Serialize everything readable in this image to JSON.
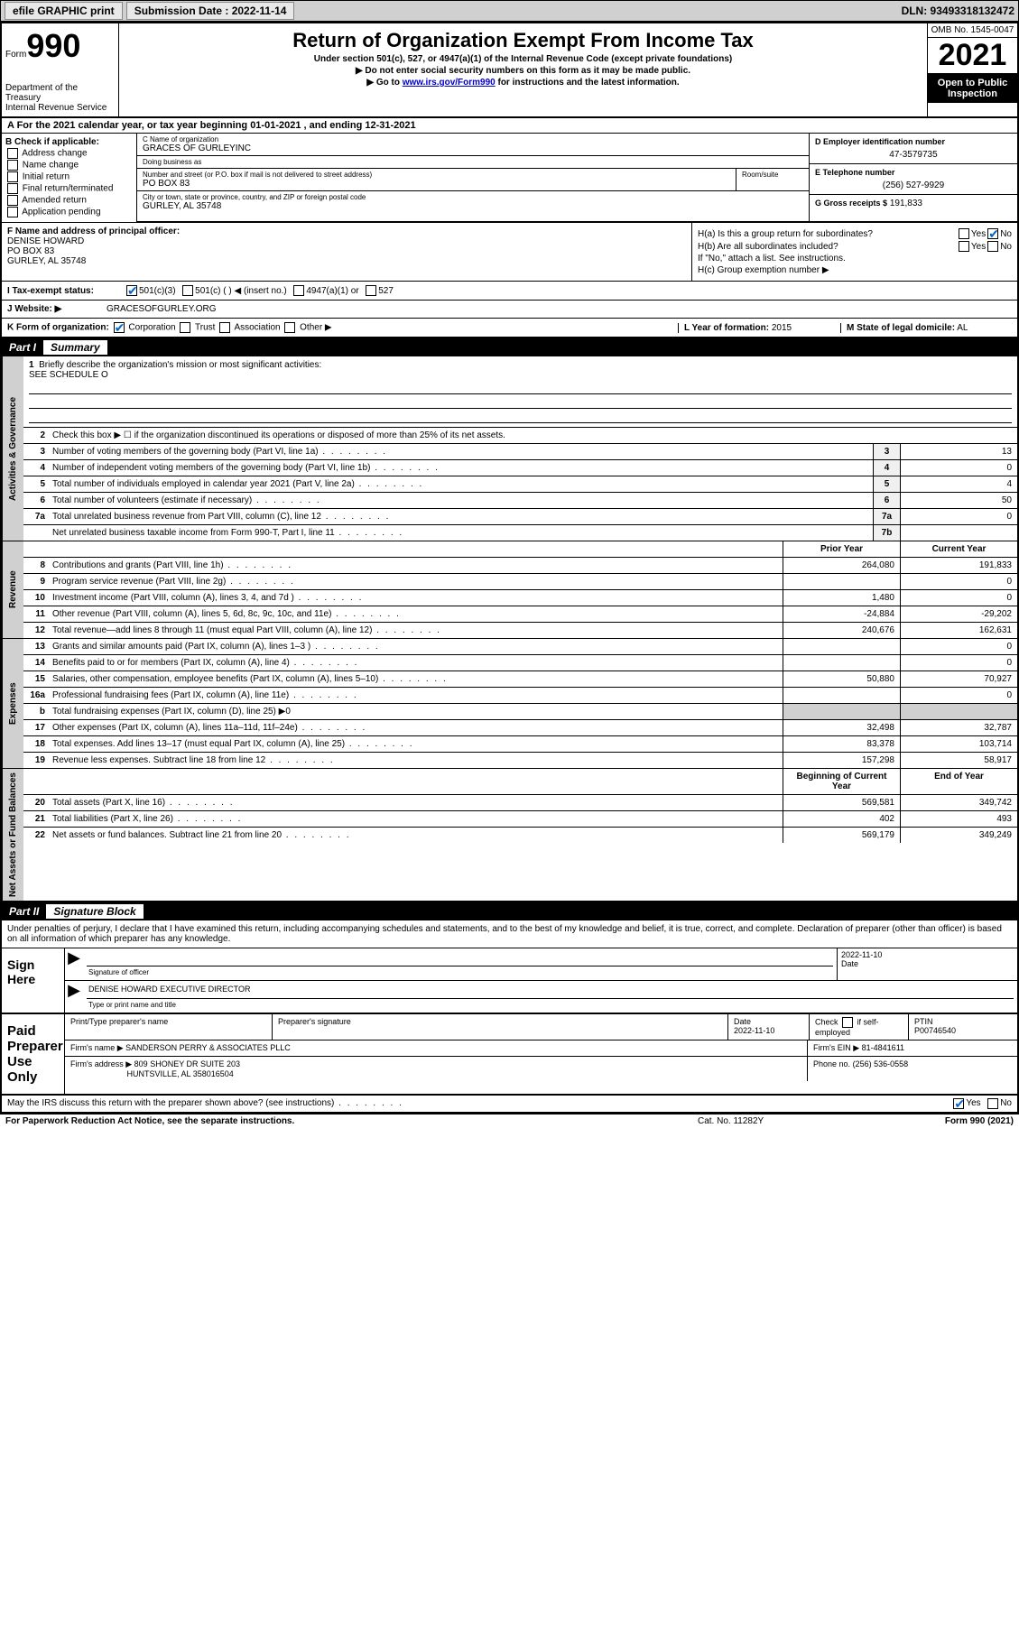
{
  "topbar": {
    "efile": "efile GRAPHIC print",
    "submission_label": "Submission Date : 2022-11-14",
    "dln": "DLN: 93493318132472"
  },
  "header": {
    "form_word": "Form",
    "form_num": "990",
    "dept": "Department of the Treasury",
    "irs": "Internal Revenue Service",
    "title": "Return of Organization Exempt From Income Tax",
    "sub1": "Under section 501(c), 527, or 4947(a)(1) of the Internal Revenue Code (except private foundations)",
    "sub2": "▶ Do not enter social security numbers on this form as it may be made public.",
    "sub3a": "▶ Go to ",
    "sub3_link": "www.irs.gov/Form990",
    "sub3b": " for instructions and the latest information.",
    "omb": "OMB No. 1545-0047",
    "year": "2021",
    "open": "Open to Public Inspection"
  },
  "rowA": {
    "text": "A For the 2021 calendar year, or tax year beginning 01-01-2021   , and ending 12-31-2021"
  },
  "B": {
    "label": "B Check if applicable:",
    "opts": [
      "Address change",
      "Name change",
      "Initial return",
      "Final return/terminated",
      "Amended return",
      "Application pending"
    ]
  },
  "C": {
    "name_lbl": "C Name of organization",
    "name": "GRACES OF GURLEYINC",
    "dba_lbl": "Doing business as",
    "dba": "",
    "street_lbl": "Number and street (or P.O. box if mail is not delivered to street address)",
    "street": "PO BOX 83",
    "suite_lbl": "Room/suite",
    "city_lbl": "City or town, state or province, country, and ZIP or foreign postal code",
    "city": "GURLEY, AL  35748"
  },
  "D": {
    "lbl": "D Employer identification number",
    "val": "47-3579735"
  },
  "E": {
    "lbl": "E Telephone number",
    "val": "(256) 527-9929"
  },
  "G": {
    "lbl": "G Gross receipts $",
    "val": "191,833"
  },
  "F": {
    "lbl": "F Name and address of principal officer:",
    "name": "DENISE HOWARD",
    "addr1": "PO BOX 83",
    "addr2": "GURLEY, AL  35748"
  },
  "H": {
    "a": "H(a)  Is this a group return for subordinates?",
    "b": "H(b)  Are all subordinates included?",
    "note": "If \"No,\" attach a list. See instructions.",
    "c": "H(c)  Group exemption number ▶",
    "yes": "Yes",
    "no": "No"
  },
  "I": {
    "lbl": "I   Tax-exempt status:",
    "o1": "501(c)(3)",
    "o2": "501(c) (  ) ◀ (insert no.)",
    "o3": "4947(a)(1) or",
    "o4": "527"
  },
  "J": {
    "lbl": "J   Website: ▶",
    "val": "GRACESOFGURLEY.ORG"
  },
  "K": {
    "lbl": "K Form of organization:",
    "o1": "Corporation",
    "o2": "Trust",
    "o3": "Association",
    "o4": "Other ▶"
  },
  "L": {
    "lbl": "L Year of formation:",
    "val": "2015"
  },
  "M": {
    "lbl": "M State of legal domicile:",
    "val": "AL"
  },
  "part1": {
    "header_pt": "Part I",
    "header_title": "Summary",
    "side_gov": "Activities & Governance",
    "side_rev": "Revenue",
    "side_exp": "Expenses",
    "side_net": "Net Assets or Fund Balances",
    "l1": "Briefly describe the organization's mission or most significant activities:",
    "l1_val": "SEE SCHEDULE O",
    "l2": "Check this box ▶ ☐  if the organization discontinued its operations or disposed of more than 25% of its net assets.",
    "lines_gov": [
      {
        "n": "3",
        "d": "Number of voting members of the governing body (Part VI, line 1a)",
        "b": "3",
        "v": "13"
      },
      {
        "n": "4",
        "d": "Number of independent voting members of the governing body (Part VI, line 1b)",
        "b": "4",
        "v": "0"
      },
      {
        "n": "5",
        "d": "Total number of individuals employed in calendar year 2021 (Part V, line 2a)",
        "b": "5",
        "v": "4"
      },
      {
        "n": "6",
        "d": "Total number of volunteers (estimate if necessary)",
        "b": "6",
        "v": "50"
      },
      {
        "n": "7a",
        "d": "Total unrelated business revenue from Part VIII, column (C), line 12",
        "b": "7a",
        "v": "0"
      },
      {
        "n": "",
        "d": "Net unrelated business taxable income from Form 990-T, Part I, line 11",
        "b": "7b",
        "v": ""
      }
    ],
    "col_prior": "Prior Year",
    "col_curr": "Current Year",
    "lines_rev": [
      {
        "n": "8",
        "d": "Contributions and grants (Part VIII, line 1h)",
        "p": "264,080",
        "c": "191,833"
      },
      {
        "n": "9",
        "d": "Program service revenue (Part VIII, line 2g)",
        "p": "",
        "c": "0"
      },
      {
        "n": "10",
        "d": "Investment income (Part VIII, column (A), lines 3, 4, and 7d )",
        "p": "1,480",
        "c": "0"
      },
      {
        "n": "11",
        "d": "Other revenue (Part VIII, column (A), lines 5, 6d, 8c, 9c, 10c, and 11e)",
        "p": "-24,884",
        "c": "-29,202"
      },
      {
        "n": "12",
        "d": "Total revenue—add lines 8 through 11 (must equal Part VIII, column (A), line 12)",
        "p": "240,676",
        "c": "162,631"
      }
    ],
    "lines_exp": [
      {
        "n": "13",
        "d": "Grants and similar amounts paid (Part IX, column (A), lines 1–3 )",
        "p": "",
        "c": "0"
      },
      {
        "n": "14",
        "d": "Benefits paid to or for members (Part IX, column (A), line 4)",
        "p": "",
        "c": "0"
      },
      {
        "n": "15",
        "d": "Salaries, other compensation, employee benefits (Part IX, column (A), lines 5–10)",
        "p": "50,880",
        "c": "70,927"
      },
      {
        "n": "16a",
        "d": "Professional fundraising fees (Part IX, column (A), line 11e)",
        "p": "",
        "c": "0"
      },
      {
        "n": "b",
        "d": "Total fundraising expenses (Part IX, column (D), line 25) ▶0",
        "p": "grey",
        "c": "grey"
      },
      {
        "n": "17",
        "d": "Other expenses (Part IX, column (A), lines 11a–11d, 11f–24e)",
        "p": "32,498",
        "c": "32,787"
      },
      {
        "n": "18",
        "d": "Total expenses. Add lines 13–17 (must equal Part IX, column (A), line 25)",
        "p": "83,378",
        "c": "103,714"
      },
      {
        "n": "19",
        "d": "Revenue less expenses. Subtract line 18 from line 12",
        "p": "157,298",
        "c": "58,917"
      }
    ],
    "col_beg": "Beginning of Current Year",
    "col_end": "End of Year",
    "lines_net": [
      {
        "n": "20",
        "d": "Total assets (Part X, line 16)",
        "p": "569,581",
        "c": "349,742"
      },
      {
        "n": "21",
        "d": "Total liabilities (Part X, line 26)",
        "p": "402",
        "c": "493"
      },
      {
        "n": "22",
        "d": "Net assets or fund balances. Subtract line 21 from line 20",
        "p": "569,179",
        "c": "349,249"
      }
    ]
  },
  "part2": {
    "header_pt": "Part II",
    "header_title": "Signature Block",
    "decl": "Under penalties of perjury, I declare that I have examined this return, including accompanying schedules and statements, and to the best of my knowledge and belief, it is true, correct, and complete. Declaration of preparer (other than officer) is based on all information of which preparer has any knowledge.",
    "sign_here": "Sign Here",
    "sig_officer_lbl": "Signature of officer",
    "sig_date_lbl": "Date",
    "sig_date": "2022-11-10",
    "sig_name": "DENISE HOWARD  EXECUTIVE DIRECTOR",
    "sig_name_lbl": "Type or print name and title",
    "paid_prep": "Paid Preparer Use Only",
    "prep_h1": "Print/Type preparer's name",
    "prep_h2": "Preparer's signature",
    "prep_h3": "Date",
    "prep_date": "2022-11-10",
    "prep_h4_a": "Check",
    "prep_h4_b": "if self-employed",
    "prep_h5": "PTIN",
    "prep_ptin": "P00746540",
    "firm_name_lbl": "Firm's name    ▶",
    "firm_name": "SANDERSON PERRY & ASSOCIATES PLLC",
    "firm_ein_lbl": "Firm's EIN ▶",
    "firm_ein": "81-4841611",
    "firm_addr_lbl": "Firm's address ▶",
    "firm_addr1": "809 SHONEY DR SUITE 203",
    "firm_addr2": "HUNTSVILLE, AL  358016504",
    "firm_phone_lbl": "Phone no.",
    "firm_phone": "(256) 536-0558",
    "discuss": "May the IRS discuss this return with the preparer shown above? (see instructions)",
    "yes": "Yes",
    "no": "No"
  },
  "footer": {
    "pra": "For Paperwork Reduction Act Notice, see the separate instructions.",
    "cat": "Cat. No. 11282Y",
    "form": "Form 990 (2021)"
  }
}
